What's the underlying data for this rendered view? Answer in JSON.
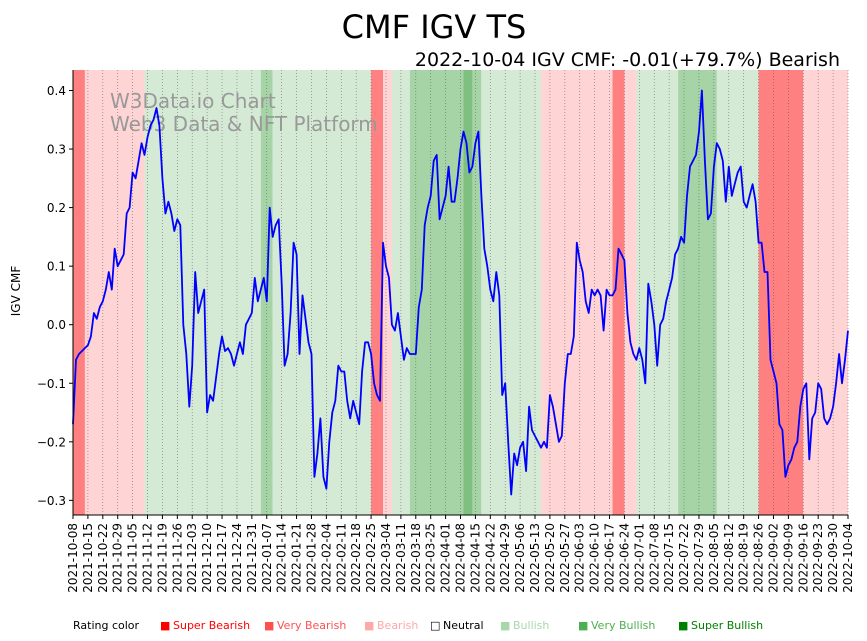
{
  "chart_data": {
    "type": "line",
    "title": "CMF IGV TS",
    "subtitle": "2022-10-04 IGV CMF: -0.01(+79.7%) Bearish",
    "ylabel": "IGV CMF",
    "xlabel": "",
    "watermark": [
      "W3Data.io Chart",
      "Web3 Data & NFT Platform"
    ],
    "ylim": [
      -0.325,
      0.435
    ],
    "yticks": [
      -0.3,
      -0.2,
      -0.1,
      0.0,
      0.1,
      0.2,
      0.3,
      0.4
    ],
    "ytick_labels": [
      "−0.3",
      "−0.2",
      "−0.1",
      "0.0",
      "0.1",
      "0.2",
      "0.3",
      "0.4"
    ],
    "x_start": "2021-10-08",
    "x_end": "2022-10-04",
    "xticks": [
      "2021-10-08",
      "2021-10-15",
      "2021-10-22",
      "2021-10-29",
      "2021-11-05",
      "2021-11-12",
      "2021-11-19",
      "2021-11-26",
      "2021-12-03",
      "2021-12-10",
      "2021-12-17",
      "2021-12-24",
      "2021-12-31",
      "2022-01-07",
      "2022-01-14",
      "2022-01-21",
      "2022-01-28",
      "2022-02-04",
      "2022-02-11",
      "2022-02-18",
      "2022-02-25",
      "2022-03-04",
      "2022-03-11",
      "2022-03-18",
      "2022-03-25",
      "2022-04-01",
      "2022-04-08",
      "2022-04-15",
      "2022-04-22",
      "2022-04-29",
      "2022-05-06",
      "2022-05-13",
      "2022-05-20",
      "2022-05-27",
      "2022-06-03",
      "2022-06-10",
      "2022-06-17",
      "2022-06-24",
      "2022-07-01",
      "2022-07-08",
      "2022-07-15",
      "2022-07-22",
      "2022-07-29",
      "2022-08-05",
      "2022-08-12",
      "2022-08-19",
      "2022-08-26",
      "2022-09-02",
      "2022-09-09",
      "2022-09-16",
      "2022-09-23",
      "2022-09-30",
      "2022-10-04"
    ],
    "series": [
      {
        "name": "IGV CMF",
        "color": "#0000ff",
        "points": [
          [
            0,
            -0.17
          ],
          [
            1,
            -0.06
          ],
          [
            2,
            -0.05
          ],
          [
            3,
            -0.045
          ],
          [
            4,
            -0.04
          ],
          [
            5,
            -0.035
          ],
          [
            6,
            -0.02
          ],
          [
            7,
            0.02
          ],
          [
            8,
            0.01
          ],
          [
            9,
            0.03
          ],
          [
            10,
            0.04
          ],
          [
            11,
            0.06
          ],
          [
            12,
            0.09
          ],
          [
            13,
            0.06
          ],
          [
            14,
            0.13
          ],
          [
            15,
            0.1
          ],
          [
            16,
            0.11
          ],
          [
            17,
            0.12
          ],
          [
            18,
            0.19
          ],
          [
            19,
            0.2
          ],
          [
            20,
            0.26
          ],
          [
            21,
            0.25
          ],
          [
            22,
            0.28
          ],
          [
            23,
            0.31
          ],
          [
            24,
            0.29
          ],
          [
            25,
            0.32
          ],
          [
            26,
            0.34
          ],
          [
            27,
            0.35
          ],
          [
            28,
            0.37
          ],
          [
            29,
            0.34
          ],
          [
            30,
            0.25
          ],
          [
            31,
            0.19
          ],
          [
            32,
            0.21
          ],
          [
            33,
            0.19
          ],
          [
            34,
            0.16
          ],
          [
            35,
            0.18
          ],
          [
            36,
            0.17
          ],
          [
            37,
            0.0
          ],
          [
            38,
            -0.05
          ],
          [
            39,
            -0.14
          ],
          [
            40,
            -0.07
          ],
          [
            41,
            0.09
          ],
          [
            42,
            0.02
          ],
          [
            43,
            0.04
          ],
          [
            44,
            0.06
          ],
          [
            45,
            -0.15
          ],
          [
            46,
            -0.12
          ],
          [
            47,
            -0.13
          ],
          [
            48,
            -0.09
          ],
          [
            49,
            -0.05
          ],
          [
            50,
            -0.02
          ],
          [
            51,
            -0.045
          ],
          [
            52,
            -0.04
          ],
          [
            53,
            -0.05
          ],
          [
            54,
            -0.07
          ],
          [
            55,
            -0.05
          ],
          [
            56,
            -0.03
          ],
          [
            57,
            -0.05
          ],
          [
            58,
            0.0
          ],
          [
            59,
            0.01
          ],
          [
            60,
            0.02
          ],
          [
            61,
            0.08
          ],
          [
            62,
            0.04
          ],
          [
            63,
            0.06
          ],
          [
            64,
            0.08
          ],
          [
            65,
            0.04
          ],
          [
            66,
            0.2
          ],
          [
            67,
            0.15
          ],
          [
            68,
            0.17
          ],
          [
            69,
            0.18
          ],
          [
            70,
            0.07
          ],
          [
            71,
            -0.07
          ],
          [
            72,
            -0.05
          ],
          [
            73,
            0.02
          ],
          [
            74,
            0.14
          ],
          [
            75,
            0.12
          ],
          [
            76,
            -0.05
          ],
          [
            77,
            0.05
          ],
          [
            78,
            0.01
          ],
          [
            79,
            -0.03
          ],
          [
            80,
            -0.05
          ],
          [
            81,
            -0.26
          ],
          [
            82,
            -0.22
          ],
          [
            83,
            -0.16
          ],
          [
            84,
            -0.26
          ],
          [
            85,
            -0.28
          ],
          [
            86,
            -0.2
          ],
          [
            87,
            -0.15
          ],
          [
            88,
            -0.13
          ],
          [
            89,
            -0.07
          ],
          [
            90,
            -0.08
          ],
          [
            91,
            -0.08
          ],
          [
            92,
            -0.13
          ],
          [
            93,
            -0.16
          ],
          [
            94,
            -0.13
          ],
          [
            95,
            -0.15
          ],
          [
            96,
            -0.17
          ],
          [
            97,
            -0.08
          ],
          [
            98,
            -0.03
          ],
          [
            99,
            -0.03
          ],
          [
            100,
            -0.05
          ],
          [
            101,
            -0.1
          ],
          [
            102,
            -0.12
          ],
          [
            103,
            -0.13
          ],
          [
            104,
            0.14
          ],
          [
            105,
            0.1
          ],
          [
            106,
            0.08
          ],
          [
            107,
            0.0
          ],
          [
            108,
            -0.01
          ],
          [
            109,
            0.02
          ],
          [
            110,
            -0.02
          ],
          [
            111,
            -0.06
          ],
          [
            112,
            -0.04
          ],
          [
            113,
            -0.05
          ],
          [
            114,
            -0.05
          ],
          [
            115,
            -0.05
          ],
          [
            116,
            0.03
          ],
          [
            117,
            0.06
          ],
          [
            118,
            0.17
          ],
          [
            119,
            0.2
          ],
          [
            120,
            0.22
          ],
          [
            121,
            0.28
          ],
          [
            122,
            0.29
          ],
          [
            123,
            0.18
          ],
          [
            124,
            0.2
          ],
          [
            125,
            0.22
          ],
          [
            126,
            0.27
          ],
          [
            127,
            0.21
          ],
          [
            128,
            0.21
          ],
          [
            129,
            0.25
          ],
          [
            130,
            0.3
          ],
          [
            131,
            0.33
          ],
          [
            132,
            0.31
          ],
          [
            133,
            0.26
          ],
          [
            134,
            0.27
          ],
          [
            135,
            0.31
          ],
          [
            136,
            0.33
          ],
          [
            137,
            0.22
          ],
          [
            138,
            0.13
          ],
          [
            139,
            0.1
          ],
          [
            140,
            0.06
          ],
          [
            141,
            0.04
          ],
          [
            142,
            0.09
          ],
          [
            143,
            0.05
          ],
          [
            144,
            -0.12
          ],
          [
            145,
            -0.1
          ],
          [
            146,
            -0.2
          ],
          [
            147,
            -0.29
          ],
          [
            148,
            -0.22
          ],
          [
            149,
            -0.24
          ],
          [
            150,
            -0.21
          ],
          [
            151,
            -0.2
          ],
          [
            152,
            -0.25
          ],
          [
            153,
            -0.14
          ],
          [
            154,
            -0.18
          ],
          [
            155,
            -0.19
          ],
          [
            156,
            -0.2
          ],
          [
            157,
            -0.21
          ],
          [
            158,
            -0.2
          ],
          [
            159,
            -0.21
          ],
          [
            160,
            -0.12
          ],
          [
            161,
            -0.14
          ],
          [
            162,
            -0.17
          ],
          [
            163,
            -0.2
          ],
          [
            164,
            -0.19
          ],
          [
            165,
            -0.1
          ],
          [
            166,
            -0.05
          ],
          [
            167,
            -0.05
          ],
          [
            168,
            -0.02
          ],
          [
            169,
            0.14
          ],
          [
            170,
            0.11
          ],
          [
            171,
            0.09
          ],
          [
            172,
            0.04
          ],
          [
            173,
            0.02
          ],
          [
            174,
            0.06
          ],
          [
            175,
            0.05
          ],
          [
            176,
            0.06
          ],
          [
            177,
            0.05
          ],
          [
            178,
            -0.01
          ],
          [
            179,
            0.06
          ],
          [
            180,
            0.05
          ],
          [
            181,
            0.05
          ],
          [
            182,
            0.06
          ],
          [
            183,
            0.13
          ],
          [
            184,
            0.12
          ],
          [
            185,
            0.11
          ],
          [
            186,
            0.02
          ],
          [
            187,
            -0.03
          ],
          [
            188,
            -0.05
          ],
          [
            189,
            -0.06
          ],
          [
            190,
            -0.04
          ],
          [
            191,
            -0.06
          ],
          [
            192,
            -0.1
          ],
          [
            193,
            0.07
          ],
          [
            194,
            0.04
          ],
          [
            195,
            0.0
          ],
          [
            196,
            -0.07
          ],
          [
            197,
            0.0
          ],
          [
            198,
            0.01
          ],
          [
            199,
            0.04
          ],
          [
            200,
            0.06
          ],
          [
            201,
            0.08
          ],
          [
            202,
            0.12
          ],
          [
            203,
            0.13
          ],
          [
            204,
            0.15
          ],
          [
            205,
            0.14
          ],
          [
            206,
            0.22
          ],
          [
            207,
            0.27
          ],
          [
            208,
            0.28
          ],
          [
            209,
            0.29
          ],
          [
            210,
            0.33
          ],
          [
            211,
            0.4
          ],
          [
            212,
            0.28
          ],
          [
            213,
            0.18
          ],
          [
            214,
            0.19
          ],
          [
            215,
            0.27
          ],
          [
            216,
            0.31
          ],
          [
            217,
            0.3
          ],
          [
            218,
            0.28
          ],
          [
            219,
            0.21
          ],
          [
            220,
            0.27
          ],
          [
            221,
            0.22
          ],
          [
            222,
            0.24
          ],
          [
            223,
            0.26
          ],
          [
            224,
            0.27
          ],
          [
            225,
            0.21
          ],
          [
            226,
            0.2
          ],
          [
            227,
            0.22
          ],
          [
            228,
            0.24
          ],
          [
            229,
            0.21
          ],
          [
            230,
            0.14
          ],
          [
            231,
            0.14
          ],
          [
            232,
            0.09
          ],
          [
            233,
            0.09
          ],
          [
            234,
            -0.06
          ],
          [
            235,
            -0.08
          ],
          [
            236,
            -0.1
          ],
          [
            237,
            -0.17
          ],
          [
            238,
            -0.18
          ],
          [
            239,
            -0.26
          ],
          [
            240,
            -0.24
          ],
          [
            241,
            -0.23
          ],
          [
            242,
            -0.21
          ],
          [
            243,
            -0.2
          ],
          [
            244,
            -0.14
          ],
          [
            245,
            -0.11
          ],
          [
            246,
            -0.1
          ],
          [
            247,
            -0.23
          ],
          [
            248,
            -0.16
          ],
          [
            249,
            -0.15
          ],
          [
            250,
            -0.1
          ],
          [
            251,
            -0.11
          ],
          [
            252,
            -0.16
          ],
          [
            253,
            -0.17
          ],
          [
            254,
            -0.16
          ],
          [
            255,
            -0.14
          ],
          [
            256,
            -0.1
          ],
          [
            257,
            -0.05
          ],
          [
            258,
            -0.1
          ],
          [
            259,
            -0.06
          ],
          [
            260,
            -0.01
          ]
        ]
      }
    ],
    "x_count": 260,
    "rating_bands": [
      {
        "from": 0,
        "to": 4,
        "rating": "Very Bearish"
      },
      {
        "from": 4,
        "to": 24,
        "rating": "Bearish"
      },
      {
        "from": 24,
        "to": 63,
        "rating": "Bullish"
      },
      {
        "from": 63,
        "to": 67,
        "rating": "Very Bullish"
      },
      {
        "from": 67,
        "to": 100,
        "rating": "Bullish"
      },
      {
        "from": 100,
        "to": 104,
        "rating": "Very Bearish"
      },
      {
        "from": 104,
        "to": 107,
        "rating": "Bearish"
      },
      {
        "from": 107,
        "to": 113,
        "rating": "Bullish"
      },
      {
        "from": 113,
        "to": 131,
        "rating": "Very Bullish"
      },
      {
        "from": 131,
        "to": 134,
        "rating": "Super Bullish"
      },
      {
        "from": 134,
        "to": 137,
        "rating": "Very Bullish"
      },
      {
        "from": 137,
        "to": 157,
        "rating": "Bullish"
      },
      {
        "from": 157,
        "to": 181,
        "rating": "Bearish"
      },
      {
        "from": 181,
        "to": 185,
        "rating": "Very Bearish"
      },
      {
        "from": 185,
        "to": 189,
        "rating": "Bearish"
      },
      {
        "from": 189,
        "to": 203,
        "rating": "Bullish"
      },
      {
        "from": 203,
        "to": 216,
        "rating": "Very Bullish"
      },
      {
        "from": 216,
        "to": 230,
        "rating": "Bullish"
      },
      {
        "from": 230,
        "to": 245,
        "rating": "Very Bearish"
      },
      {
        "from": 245,
        "to": 260,
        "rating": "Bearish"
      }
    ],
    "legend": {
      "title": "Rating color",
      "placement": "bottom",
      "items": [
        {
          "label": "Super Bearish",
          "color": "#ff0000"
        },
        {
          "label": "Very Bearish",
          "color": "#ff5050"
        },
        {
          "label": "Bearish",
          "color": "#ffa8a8"
        },
        {
          "label": "Neutral",
          "color": "#000000"
        },
        {
          "label": "Bullish",
          "color": "#a8d8a8"
        },
        {
          "label": "Very Bullish",
          "color": "#4caf50"
        },
        {
          "label": "Super Bullish",
          "color": "#008000"
        }
      ]
    }
  }
}
